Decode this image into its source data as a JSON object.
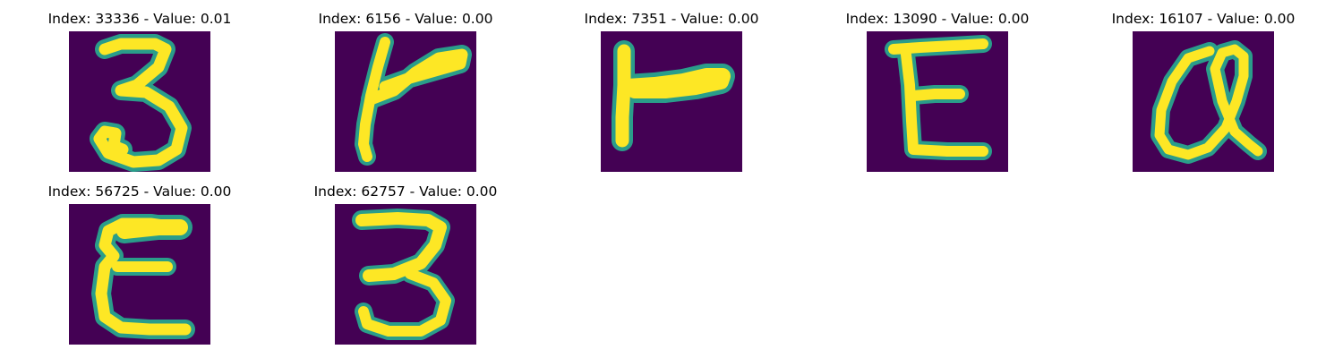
{
  "panels": [
    {
      "title": "Index: 33336 - Value: 0.01",
      "glyph": "3"
    },
    {
      "title": "Index: 6156 - Value: 0.00",
      "glyph": "r"
    },
    {
      "title": "Index: 7351 - Value: 0.00",
      "glyph": "r"
    },
    {
      "title": "Index: 13090 - Value: 0.00",
      "glyph": "E"
    },
    {
      "title": "Index: 16107 - Value: 0.00",
      "glyph": "Q"
    },
    {
      "title": "Index: 56725 - Value: 0.00",
      "glyph": "E"
    },
    {
      "title": "Index: 62757 - Value: 0.00",
      "glyph": "3"
    }
  ],
  "colors": {
    "background": "#440154",
    "stroke_core": "#fde725",
    "stroke_edge": "#2a9d8a"
  }
}
